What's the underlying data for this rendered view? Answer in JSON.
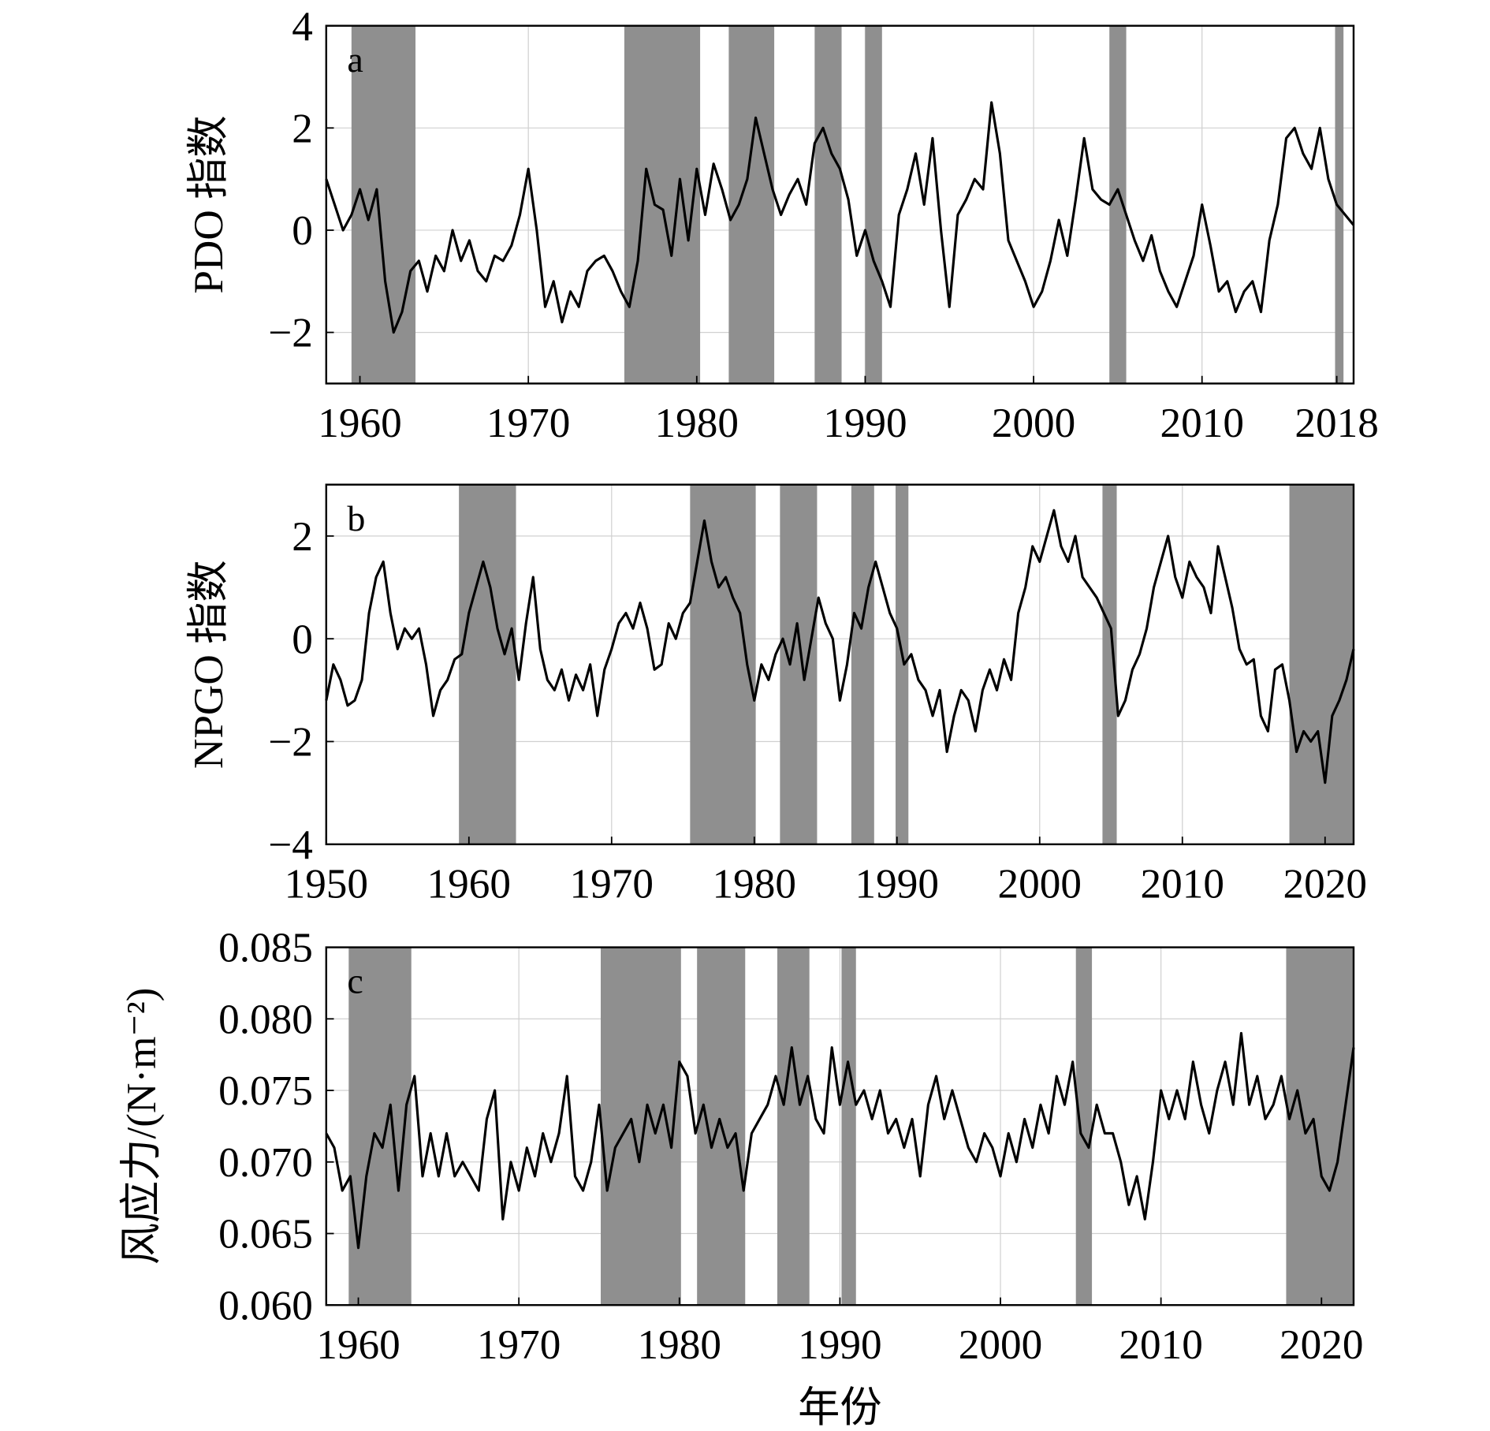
{
  "chart_data": [
    {
      "type": "line",
      "panel_label": "a",
      "ylabel": "PDO 指数",
      "color": "#000000",
      "shade_color": "#8f8f8f",
      "grid": true,
      "xlim": [
        1958,
        2019
      ],
      "ylim": [
        -3,
        4
      ],
      "xticks": [
        1960,
        1970,
        1980,
        1990,
        2000,
        2010,
        2018
      ],
      "yticks": [
        {
          "value": -2,
          "label": "−2"
        },
        0,
        2,
        4
      ],
      "shaded_spans": [
        [
          1959.5,
          1963.3
        ],
        [
          1975.7,
          1980.2
        ],
        [
          1981.9,
          1984.6
        ],
        [
          1987.0,
          1988.6
        ],
        [
          1990.0,
          1991.0
        ],
        [
          2004.5,
          2005.5
        ],
        [
          2017.9,
          2018.4
        ]
      ],
      "x": [
        1958,
        1958.5,
        1959,
        1959.5,
        1960,
        1960.5,
        1961,
        1961.5,
        1962,
        1962.5,
        1963,
        1963.5,
        1964,
        1964.5,
        1965,
        1965.5,
        1966,
        1966.5,
        1967,
        1967.5,
        1968,
        1968.5,
        1969,
        1969.5,
        1970,
        1970.5,
        1971,
        1971.5,
        1972,
        1972.5,
        1973,
        1973.5,
        1974,
        1974.5,
        1975,
        1975.5,
        1976,
        1976.5,
        1977,
        1977.5,
        1978,
        1978.5,
        1979,
        1979.5,
        1980,
        1980.5,
        1981,
        1981.5,
        1982,
        1982.5,
        1983,
        1983.5,
        1984,
        1984.5,
        1985,
        1985.5,
        1986,
        1986.5,
        1987,
        1987.5,
        1988,
        1988.5,
        1989,
        1989.5,
        1990,
        1990.5,
        1991,
        1991.5,
        1992,
        1992.5,
        1993,
        1993.5,
        1994,
        1994.5,
        1995,
        1995.5,
        1996,
        1996.5,
        1997,
        1997.5,
        1998,
        1998.5,
        1999,
        1999.5,
        2000,
        2000.5,
        2001,
        2001.5,
        2002,
        2002.5,
        2003,
        2003.5,
        2004,
        2004.5,
        2005,
        2005.5,
        2006,
        2006.5,
        2007,
        2007.5,
        2008,
        2008.5,
        2009,
        2009.5,
        2010,
        2010.5,
        2011,
        2011.5,
        2012,
        2012.5,
        2013,
        2013.5,
        2014,
        2014.5,
        2015,
        2015.5,
        2016,
        2016.5,
        2017,
        2017.5,
        2018,
        2018.5,
        2019
      ],
      "values": [
        1.0,
        0.5,
        0.0,
        0.3,
        0.8,
        0.2,
        0.8,
        -1.0,
        -2.0,
        -1.6,
        -0.8,
        -0.6,
        -1.2,
        -0.5,
        -0.8,
        0.0,
        -0.6,
        -0.2,
        -0.8,
        -1.0,
        -0.5,
        -0.6,
        -0.3,
        0.3,
        1.2,
        0.0,
        -1.5,
        -1.0,
        -1.8,
        -1.2,
        -1.5,
        -0.8,
        -0.6,
        -0.5,
        -0.8,
        -1.2,
        -1.5,
        -0.6,
        1.2,
        0.5,
        0.4,
        -0.5,
        1.0,
        -0.2,
        1.2,
        0.3,
        1.3,
        0.8,
        0.2,
        0.5,
        1.0,
        2.2,
        1.5,
        0.8,
        0.3,
        0.7,
        1.0,
        0.5,
        1.7,
        2.0,
        1.5,
        1.2,
        0.6,
        -0.5,
        0.0,
        -0.6,
        -1.0,
        -1.5,
        0.3,
        0.8,
        1.5,
        0.5,
        1.8,
        0.0,
        -1.5,
        0.3,
        0.6,
        1.0,
        0.8,
        2.5,
        1.5,
        -0.2,
        -0.6,
        -1.0,
        -1.5,
        -1.2,
        -0.6,
        0.2,
        -0.5,
        0.6,
        1.8,
        0.8,
        0.6,
        0.5,
        0.8,
        0.3,
        -0.2,
        -0.6,
        -0.1,
        -0.8,
        -1.2,
        -1.5,
        -1.0,
        -0.5,
        0.5,
        -0.3,
        -1.2,
        -1.0,
        -1.6,
        -1.2,
        -1.0,
        -1.6,
        -0.2,
        0.5,
        1.8,
        2.0,
        1.5,
        1.2,
        2.0,
        1.0,
        0.5,
        0.3,
        0.1
      ]
    },
    {
      "type": "line",
      "panel_label": "b",
      "ylabel": "NPGO 指数",
      "color": "#000000",
      "shade_color": "#8f8f8f",
      "grid": true,
      "xlim": [
        1950,
        2022
      ],
      "ylim": [
        -4,
        3
      ],
      "xticks": [
        1950,
        1960,
        1970,
        1980,
        1990,
        2000,
        2010,
        2020
      ],
      "yticks": [
        {
          "value": -4,
          "label": "−4"
        },
        {
          "value": -2,
          "label": "−2"
        },
        0,
        2
      ],
      "shaded_spans": [
        [
          1959.3,
          1963.3
        ],
        [
          1975.5,
          1980.1
        ],
        [
          1981.8,
          1984.4
        ],
        [
          1986.8,
          1988.4
        ],
        [
          1989.9,
          1990.8
        ],
        [
          2004.4,
          2005.4
        ],
        [
          2017.5,
          2022
        ]
      ],
      "x": [
        1950,
        1950.5,
        1951,
        1951.5,
        1952,
        1952.5,
        1953,
        1953.5,
        1954,
        1954.5,
        1955,
        1955.5,
        1956,
        1956.5,
        1957,
        1957.5,
        1958,
        1958.5,
        1959,
        1959.5,
        1960,
        1960.5,
        1961,
        1961.5,
        1962,
        1962.5,
        1963,
        1963.5,
        1964,
        1964.5,
        1965,
        1965.5,
        1966,
        1966.5,
        1967,
        1967.5,
        1968,
        1968.5,
        1969,
        1969.5,
        1970,
        1970.5,
        1971,
        1971.5,
        1972,
        1972.5,
        1973,
        1973.5,
        1974,
        1974.5,
        1975,
        1975.5,
        1976,
        1976.5,
        1977,
        1977.5,
        1978,
        1978.5,
        1979,
        1979.5,
        1980,
        1980.5,
        1981,
        1981.5,
        1982,
        1982.5,
        1983,
        1983.5,
        1984,
        1984.5,
        1985,
        1985.5,
        1986,
        1986.5,
        1987,
        1987.5,
        1988,
        1988.5,
        1989,
        1989.5,
        1990,
        1990.5,
        1991,
        1991.5,
        1992,
        1992.5,
        1993,
        1993.5,
        1994,
        1994.5,
        1995,
        1995.5,
        1996,
        1996.5,
        1997,
        1997.5,
        1998,
        1998.5,
        1999,
        1999.5,
        2000,
        2000.5,
        2001,
        2001.5,
        2002,
        2002.5,
        2003,
        2003.5,
        2004,
        2004.5,
        2005,
        2005.5,
        2006,
        2006.5,
        2007,
        2007.5,
        2008,
        2008.5,
        2009,
        2009.5,
        2010,
        2010.5,
        2011,
        2011.5,
        2012,
        2012.5,
        2013,
        2013.5,
        2014,
        2014.5,
        2015,
        2015.5,
        2016,
        2016.5,
        2017,
        2017.5,
        2018,
        2018.5,
        2019,
        2019.5,
        2020,
        2020.5,
        2021,
        2021.5,
        2022
      ],
      "values": [
        -1.2,
        -0.5,
        -0.8,
        -1.3,
        -1.2,
        -0.8,
        0.5,
        1.2,
        1.5,
        0.5,
        -0.2,
        0.2,
        0.0,
        0.2,
        -0.5,
        -1.5,
        -1.0,
        -0.8,
        -0.4,
        -0.3,
        0.5,
        1.0,
        1.5,
        1.0,
        0.2,
        -0.3,
        0.2,
        -0.8,
        0.3,
        1.2,
        -0.2,
        -0.8,
        -1.0,
        -0.6,
        -1.2,
        -0.7,
        -1.0,
        -0.5,
        -1.5,
        -0.6,
        -0.2,
        0.3,
        0.5,
        0.2,
        0.7,
        0.2,
        -0.6,
        -0.5,
        0.3,
        0.0,
        0.5,
        0.7,
        1.5,
        2.3,
        1.5,
        1.0,
        1.2,
        0.8,
        0.5,
        -0.5,
        -1.2,
        -0.5,
        -0.8,
        -0.3,
        0.0,
        -0.5,
        0.3,
        -0.8,
        0.0,
        0.8,
        0.3,
        0.0,
        -1.2,
        -0.5,
        0.5,
        0.2,
        1.0,
        1.5,
        1.0,
        0.5,
        0.2,
        -0.5,
        -0.3,
        -0.8,
        -1.0,
        -1.5,
        -1.0,
        -2.2,
        -1.5,
        -1.0,
        -1.2,
        -1.8,
        -1.0,
        -0.6,
        -1.0,
        -0.4,
        -0.8,
        0.5,
        1.0,
        1.8,
        1.5,
        2.0,
        2.5,
        1.8,
        1.5,
        2.0,
        1.2,
        1.0,
        0.8,
        0.5,
        0.2,
        -1.5,
        -1.2,
        -0.6,
        -0.3,
        0.2,
        1.0,
        1.5,
        2.0,
        1.2,
        0.8,
        1.5,
        1.2,
        1.0,
        0.5,
        1.8,
        1.2,
        0.6,
        -0.2,
        -0.5,
        -0.4,
        -1.5,
        -1.8,
        -0.6,
        -0.5,
        -1.2,
        -2.2,
        -1.8,
        -2.0,
        -1.8,
        -2.8,
        -1.5,
        -1.2,
        -0.8,
        -0.2
      ]
    },
    {
      "type": "line",
      "panel_label": "c",
      "ylabel": "风应力/(N·m⁻²)",
      "xlabel": "年份",
      "color": "#000000",
      "shade_color": "#8f8f8f",
      "grid": true,
      "xlim": [
        1958,
        2022
      ],
      "ylim": [
        0.06,
        0.085
      ],
      "xticks": [
        1960,
        1970,
        1980,
        1990,
        2000,
        2010,
        2020
      ],
      "yticks": [
        {
          "value": 0.06,
          "label": "0.060"
        },
        0.065,
        {
          "value": 0.07,
          "label": "0.070"
        },
        0.075,
        {
          "value": 0.08,
          "label": "0.080"
        },
        0.085
      ],
      "shaded_spans": [
        [
          1959.4,
          1963.3
        ],
        [
          1975.1,
          1980.1
        ],
        [
          1981.1,
          1984.1
        ],
        [
          1986.1,
          1988.1
        ],
        [
          1990.1,
          1991.0
        ],
        [
          2004.7,
          2005.7
        ],
        [
          2017.8,
          2022
        ]
      ],
      "x": [
        1958,
        1958.5,
        1959,
        1959.5,
        1960,
        1960.5,
        1961,
        1961.5,
        1962,
        1962.5,
        1963,
        1963.5,
        1964,
        1964.5,
        1965,
        1965.5,
        1966,
        1966.5,
        1967,
        1967.5,
        1968,
        1968.5,
        1969,
        1969.5,
        1970,
        1970.5,
        1971,
        1971.5,
        1972,
        1972.5,
        1973,
        1973.5,
        1974,
        1974.5,
        1975,
        1975.5,
        1976,
        1976.5,
        1977,
        1977.5,
        1978,
        1978.5,
        1979,
        1979.5,
        1980,
        1980.5,
        1981,
        1981.5,
        1982,
        1982.5,
        1983,
        1983.5,
        1984,
        1984.5,
        1985,
        1985.5,
        1986,
        1986.5,
        1987,
        1987.5,
        1988,
        1988.5,
        1989,
        1989.5,
        1990,
        1990.5,
        1991,
        1991.5,
        1992,
        1992.5,
        1993,
        1993.5,
        1994,
        1994.5,
        1995,
        1995.5,
        1996,
        1996.5,
        1997,
        1997.5,
        1998,
        1998.5,
        1999,
        1999.5,
        2000,
        2000.5,
        2001,
        2001.5,
        2002,
        2002.5,
        2003,
        2003.5,
        2004,
        2004.5,
        2005,
        2005.5,
        2006,
        2006.5,
        2007,
        2007.5,
        2008,
        2008.5,
        2009,
        2009.5,
        2010,
        2010.5,
        2011,
        2011.5,
        2012,
        2012.5,
        2013,
        2013.5,
        2014,
        2014.5,
        2015,
        2015.5,
        2016,
        2016.5,
        2017,
        2017.5,
        2018,
        2018.5,
        2019,
        2019.5,
        2020,
        2020.5,
        2021,
        2021.5,
        2022
      ],
      "values": [
        0.072,
        0.071,
        0.068,
        0.069,
        0.064,
        0.069,
        0.072,
        0.071,
        0.074,
        0.068,
        0.074,
        0.076,
        0.069,
        0.072,
        0.069,
        0.072,
        0.069,
        0.07,
        0.069,
        0.068,
        0.073,
        0.075,
        0.066,
        0.07,
        0.068,
        0.071,
        0.069,
        0.072,
        0.07,
        0.072,
        0.076,
        0.069,
        0.068,
        0.07,
        0.074,
        0.068,
        0.071,
        0.072,
        0.073,
        0.07,
        0.074,
        0.072,
        0.074,
        0.071,
        0.077,
        0.076,
        0.072,
        0.074,
        0.071,
        0.073,
        0.071,
        0.072,
        0.068,
        0.072,
        0.073,
        0.074,
        0.076,
        0.074,
        0.078,
        0.074,
        0.076,
        0.073,
        0.072,
        0.078,
        0.074,
        0.077,
        0.074,
        0.075,
        0.073,
        0.075,
        0.072,
        0.073,
        0.071,
        0.073,
        0.069,
        0.074,
        0.076,
        0.073,
        0.075,
        0.073,
        0.071,
        0.07,
        0.072,
        0.071,
        0.069,
        0.072,
        0.07,
        0.073,
        0.071,
        0.074,
        0.072,
        0.076,
        0.074,
        0.077,
        0.072,
        0.071,
        0.074,
        0.072,
        0.072,
        0.07,
        0.067,
        0.069,
        0.066,
        0.07,
        0.075,
        0.073,
        0.075,
        0.073,
        0.077,
        0.074,
        0.072,
        0.075,
        0.077,
        0.074,
        0.079,
        0.074,
        0.076,
        0.073,
        0.074,
        0.076,
        0.073,
        0.075,
        0.072,
        0.073,
        0.069,
        0.068,
        0.07,
        0.074,
        0.078
      ]
    }
  ]
}
